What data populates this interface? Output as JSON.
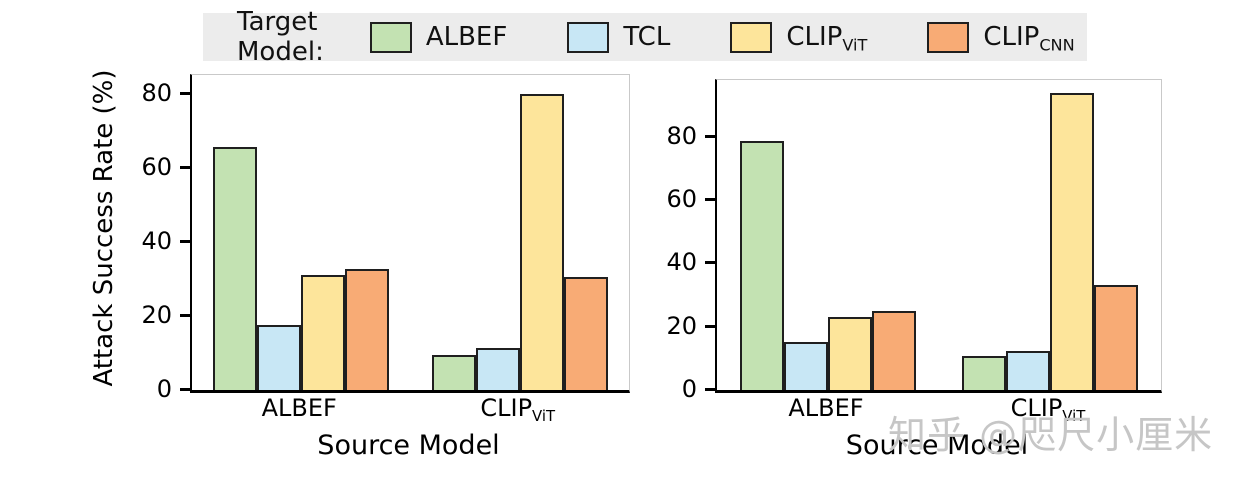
{
  "legend": {
    "title": "Target Model:",
    "background": "#ececec",
    "items": [
      {
        "label": "ALBEF",
        "sub": "",
        "color": "#c3e2b2"
      },
      {
        "label": "TCL",
        "sub": "",
        "color": "#c8e7f5"
      },
      {
        "label": "CLIP",
        "sub": "ViT",
        "color": "#fde59b"
      },
      {
        "label": "CLIP",
        "sub": "CNN",
        "color": "#f8ab75"
      }
    ]
  },
  "watermark": "知乎 @咫尺小厘米",
  "colors": {
    "bar_edge": "#1f1f1f",
    "axis": "#000000",
    "watermark_gray": "#c6c6c6"
  },
  "chart_data": [
    {
      "type": "bar",
      "title": "",
      "xlabel": "Source Model",
      "ylabel": "Attack Success Rate (%)",
      "ylim": [
        0,
        85
      ],
      "yticks": [
        0,
        20,
        40,
        60,
        80
      ],
      "grid": false,
      "legend_position": "top-shared",
      "categories": [
        {
          "label": "ALBEF",
          "sub": ""
        },
        {
          "label": "CLIP",
          "sub": "ViT"
        }
      ],
      "series": [
        {
          "name": "ALBEF",
          "values": [
            65.7,
            9.5
          ]
        },
        {
          "name": "TCL",
          "values": [
            17.6,
            11.3
          ]
        },
        {
          "name": "CLIP_ViT",
          "values": [
            31.0,
            80.0
          ]
        },
        {
          "name": "CLIP_CNN",
          "values": [
            32.6,
            30.4
          ]
        }
      ]
    },
    {
      "type": "bar",
      "title": "",
      "xlabel": "Source Model",
      "ylabel": "",
      "ylim": [
        0,
        98
      ],
      "yticks": [
        0,
        20,
        40,
        60,
        80
      ],
      "grid": false,
      "legend_position": "top-shared",
      "categories": [
        {
          "label": "ALBEF",
          "sub": ""
        },
        {
          "label": "CLIP",
          "sub": "ViT"
        }
      ],
      "series": [
        {
          "name": "ALBEF",
          "values": [
            78.8,
            10.7
          ]
        },
        {
          "name": "TCL",
          "values": [
            15.2,
            12.4
          ]
        },
        {
          "name": "CLIP_ViT",
          "values": [
            23.2,
            94.0
          ]
        },
        {
          "name": "CLIP_CNN",
          "values": [
            25.0,
            33.2
          ]
        }
      ]
    }
  ]
}
